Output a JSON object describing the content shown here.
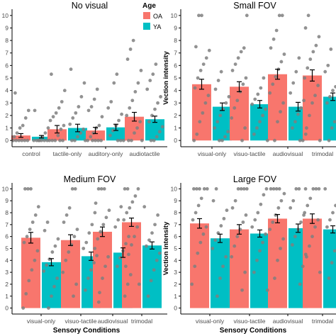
{
  "legend": {
    "title": "Age",
    "items": [
      {
        "label": "OA",
        "color": "#F8766D"
      },
      {
        "label": "YA",
        "color": "#00BFC4"
      }
    ]
  },
  "colors": {
    "axis": "#000000",
    "tick_text": "#4d4d4d",
    "point": "#7f7f7f"
  },
  "chart_data": [
    {
      "type": "bar",
      "title": "No visual",
      "categories": [
        "control",
        "tactile-only",
        "auditory-only",
        "audiotactile"
      ],
      "ylim": [
        -0.5,
        10.5
      ],
      "yticks": [
        0,
        1,
        2,
        3,
        4,
        5,
        6,
        7,
        8,
        9,
        10
      ],
      "ylabel": "",
      "xlabel": "",
      "grid": false,
      "series": [
        {
          "name": "OA",
          "values": [
            0.4,
            0.9,
            0.8,
            1.9
          ],
          "errors": [
            0.15,
            0.3,
            0.25,
            0.35
          ],
          "points": [
            [
              0,
              0,
              0,
              0,
              0,
              0,
              0.3,
              0.6,
              1.0,
              1.2,
              1.8,
              2.4,
              3.8
            ],
            [
              0,
              0,
              0,
              0,
              0,
              0.4,
              0.9,
              1.2,
              1.6,
              1.9,
              2.2,
              2.6,
              3.1,
              4.0,
              5.3
            ],
            [
              0,
              0,
              0,
              0,
              0,
              0.3,
              0.6,
              1.0,
              1.2,
              1.9,
              2.4,
              2.7,
              3.3,
              4.1
            ],
            [
              0,
              0,
              0,
              0.6,
              1.0,
              1.5,
              2.0,
              2.6,
              3.2,
              3.9,
              4.6,
              5.6,
              6.5,
              7.3,
              8.0
            ]
          ]
        },
        {
          "name": "YA",
          "values": [
            0.3,
            1.0,
            1.05,
            1.7
          ],
          "errors": [
            0.1,
            0.3,
            0.25,
            0.25
          ],
          "points": [
            [
              0,
              0,
              0,
              0,
              0,
              0,
              0,
              0.3,
              0.6,
              1.0,
              2.4
            ],
            [
              0,
              0,
              0,
              0.3,
              0.6,
              0.9,
              1.3,
              1.8,
              2.2,
              2.7,
              3.5,
              4.6,
              5.7
            ],
            [
              0,
              0,
              0,
              0.4,
              0.8,
              1.2,
              1.6,
              2.1,
              2.6,
              3.1,
              4.6,
              5.3
            ],
            [
              0,
              0,
              0.3,
              0.7,
              1.1,
              1.5,
              2.0,
              2.5,
              3.0,
              3.5,
              4.1,
              4.8,
              5.3,
              6.1
            ]
          ]
        }
      ]
    },
    {
      "type": "bar",
      "title": "Small FOV",
      "categories": [
        "visual-only",
        "visuo-tactile",
        "audiovisual",
        "trimodal"
      ],
      "ylim": [
        -0.5,
        10.5
      ],
      "yticks": [
        0,
        1,
        2,
        3,
        4,
        5,
        6,
        7,
        8,
        9,
        10
      ],
      "ylabel": "Vection intensity",
      "xlabel": "",
      "grid": false,
      "series": [
        {
          "name": "OA",
          "values": [
            4.5,
            4.3,
            5.3,
            5.2
          ],
          "errors": [
            0.4,
            0.4,
            0.4,
            0.45
          ],
          "points": [
            [
              0,
              0.5,
              1.5,
              2.2,
              3.0,
              3.6,
              4.2,
              5.0,
              5.6,
              6.1,
              6.6,
              7.2,
              7.5,
              10,
              10
            ],
            [
              0,
              1.0,
              1.8,
              2.6,
              3.2,
              3.9,
              4.5,
              5.0,
              5.6,
              6.1,
              6.6,
              7.1,
              7.4,
              10
            ],
            [
              0,
              1.5,
              2.3,
              3.0,
              3.8,
              4.5,
              5.1,
              5.7,
              6.3,
              6.9,
              7.4,
              8.1,
              8.8,
              10,
              10
            ],
            [
              0,
              1.0,
              2.0,
              3.0,
              3.6,
              4.4,
              5.0,
              5.8,
              6.5,
              7.1,
              7.6,
              8.3,
              9.0,
              10
            ]
          ]
        },
        {
          "name": "YA",
          "values": [
            2.7,
            2.9,
            2.7,
            3.5
          ],
          "errors": [
            0.3,
            0.3,
            0.35,
            0.3
          ],
          "points": [
            [
              0,
              0,
              0.3,
              0.7,
              1.0,
              1.5,
              2.0,
              2.5,
              3.0,
              3.5,
              4.1,
              4.8,
              5.5
            ],
            [
              0,
              0.5,
              1.0,
              1.5,
              2.0,
              2.5,
              2.9,
              3.3,
              3.7,
              4.2,
              5.0
            ],
            [
              0,
              0,
              0.5,
              1.0,
              1.5,
              2.1,
              2.6,
              3.2,
              3.8,
              4.6,
              5.5,
              6.6
            ],
            [
              0,
              1.0,
              1.5,
              2.0,
              2.5,
              3.0,
              3.5,
              4.0,
              4.3,
              4.8,
              5.5,
              6.0,
              7.3
            ]
          ]
        }
      ]
    },
    {
      "type": "bar",
      "title": "Medium FOV",
      "categories": [
        "visual-only",
        "visuo-tactile",
        "audiovisual",
        "trimodal"
      ],
      "ylim": [
        -0.5,
        10.5
      ],
      "yticks": [
        0,
        1,
        2,
        3,
        4,
        5,
        6,
        7,
        8,
        9,
        10
      ],
      "ylabel": "",
      "xlabel": "Sensory Conditions",
      "grid": false,
      "series": [
        {
          "name": "OA",
          "values": [
            5.9,
            5.7,
            6.4,
            7.2
          ],
          "errors": [
            0.45,
            0.45,
            0.4,
            0.35
          ],
          "points": [
            [
              0,
              1.2,
              2.3,
              3.2,
              4.0,
              4.8,
              5.5,
              6.0,
              6.6,
              7.2,
              7.8,
              8.5,
              10,
              10,
              10
            ],
            [
              1.0,
              2.0,
              3.0,
              4.0,
              4.7,
              5.3,
              6.0,
              6.6,
              7.2,
              7.8,
              8.4,
              10,
              10
            ],
            [
              1.3,
              2.5,
              3.5,
              4.3,
              5.0,
              5.8,
              6.4,
              7.0,
              7.6,
              8.2,
              8.8,
              10,
              10,
              10
            ],
            [
              2.0,
              3.5,
              4.5,
              5.3,
              6.0,
              6.8,
              7.4,
              8.0,
              8.4,
              8.9,
              9.4,
              10,
              10,
              10
            ]
          ]
        },
        {
          "name": "YA",
          "values": [
            3.85,
            4.35,
            4.65,
            5.25
          ],
          "errors": [
            0.3,
            0.35,
            0.4,
            0.3
          ],
          "points": [
            [
              0,
              1.0,
              1.8,
              2.5,
              3.1,
              3.6,
              4.1,
              4.7,
              5.2,
              5.8,
              6.5,
              7.2
            ],
            [
              0.5,
              1.5,
              2.5,
              3.2,
              3.8,
              4.4,
              5.0,
              5.5,
              6.3,
              7.0,
              8.0
            ],
            [
              1.0,
              2.0,
              2.8,
              3.5,
              4.2,
              4.8,
              5.4,
              6.0,
              6.8,
              7.4,
              8.5
            ],
            [
              1.0,
              2.3,
              3.2,
              4.0,
              4.6,
              5.2,
              5.7,
              6.3,
              7.0,
              7.8,
              8.5
            ]
          ]
        }
      ]
    },
    {
      "type": "bar",
      "title": "Large FOV",
      "categories": [
        "visual-only",
        "visuo-tactile",
        "audiovisual",
        "trimodal"
      ],
      "ylim": [
        -0.5,
        10.5
      ],
      "yticks": [
        0,
        1,
        2,
        3,
        4,
        5,
        6,
        7,
        8,
        9,
        10
      ],
      "ylabel": "Vection intensity",
      "xlabel": "Sensory Conditions",
      "grid": false,
      "series": [
        {
          "name": "OA",
          "values": [
            7.1,
            6.6,
            7.5,
            7.5
          ],
          "errors": [
            0.4,
            0.4,
            0.35,
            0.4
          ],
          "points": [
            [
              2.0,
              3.5,
              4.6,
              5.5,
              6.2,
              6.8,
              7.4,
              8.0,
              8.6,
              9.2,
              10,
              10,
              10,
              10,
              10
            ],
            [
              1.5,
              3.0,
              4.3,
              5.2,
              6.0,
              6.6,
              7.2,
              7.8,
              8.4,
              9.0,
              10,
              10,
              10,
              10
            ],
            [
              2.5,
              4.0,
              5.0,
              5.8,
              6.6,
              7.2,
              7.8,
              8.4,
              9.0,
              9.6,
              10,
              10,
              10,
              10
            ],
            [
              3.0,
              4.3,
              5.2,
              6.0,
              6.8,
              7.4,
              8.0,
              8.6,
              9.2,
              10,
              10,
              10,
              10
            ]
          ]
        },
        {
          "name": "YA",
          "values": [
            5.85,
            6.25,
            6.7,
            6.6
          ],
          "errors": [
            0.35,
            0.3,
            0.35,
            0.3
          ],
          "points": [
            [
              1.0,
              2.5,
              3.5,
              4.3,
              5.0,
              5.7,
              6.3,
              6.9,
              7.5,
              8.2,
              9.0,
              10
            ],
            [
              1.5,
              3.0,
              4.0,
              4.8,
              5.5,
              6.2,
              6.8,
              7.4,
              8.0,
              8.7,
              9.5,
              10
            ],
            [
              2.0,
              3.5,
              4.5,
              5.3,
              6.0,
              6.6,
              7.2,
              7.8,
              8.4,
              9.0,
              10,
              10
            ],
            [
              2.5,
              3.8,
              4.8,
              5.6,
              6.2,
              6.8,
              7.4,
              8.0,
              8.6,
              9.3,
              10
            ]
          ]
        }
      ]
    }
  ]
}
